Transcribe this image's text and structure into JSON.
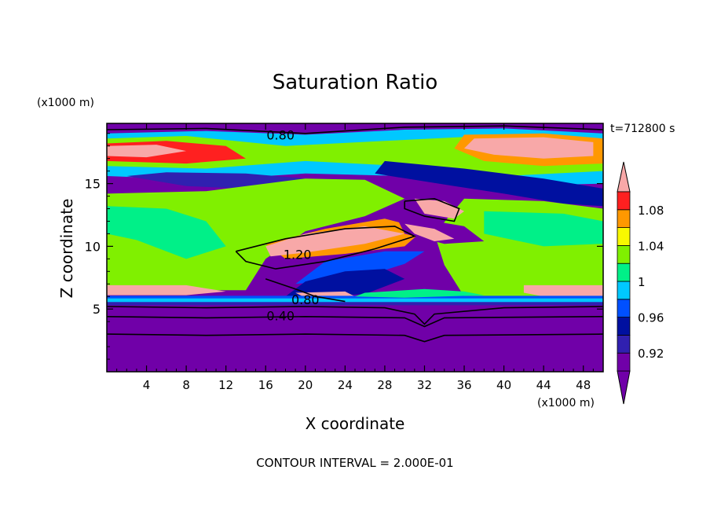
{
  "chart_data": {
    "type": "heatmap",
    "title": "Saturation Ratio",
    "xlabel": "X coordinate",
    "ylabel": "Z coordinate",
    "x_unit": "(x1000 m)",
    "z_unit": "(x1000 m)",
    "time_label": "t=712800 s",
    "footer": "CONTOUR INTERVAL = 2.000E-01",
    "xlim": [
      0,
      50
    ],
    "zlim": [
      0,
      19.8
    ],
    "x_ticks": [
      "4",
      "8",
      "12",
      "16",
      "20",
      "24",
      "28",
      "32",
      "36",
      "40",
      "44",
      "48"
    ],
    "z_ticks": [
      "5",
      "10",
      "15"
    ],
    "colorbar": {
      "labels": [
        "1.08",
        "1.04",
        "1",
        "0.96",
        "0.92"
      ],
      "levels": [
        0.9,
        0.92,
        0.94,
        0.96,
        0.98,
        1.0,
        1.02,
        1.04,
        1.06,
        1.08,
        1.1
      ],
      "colors": [
        "#7000a8",
        "#3020b0",
        "#0010a0",
        "#0050ff",
        "#00c8ff",
        "#00f088",
        "#80f000",
        "#f8f800",
        "#ff9800",
        "#ff2020",
        "#f8a8a8"
      ],
      "under_color": "#7000a8",
      "over_color": "#f8a8a8"
    },
    "contour_labels": [
      "0.80",
      "1.20",
      "0.80",
      "0.40"
    ]
  }
}
